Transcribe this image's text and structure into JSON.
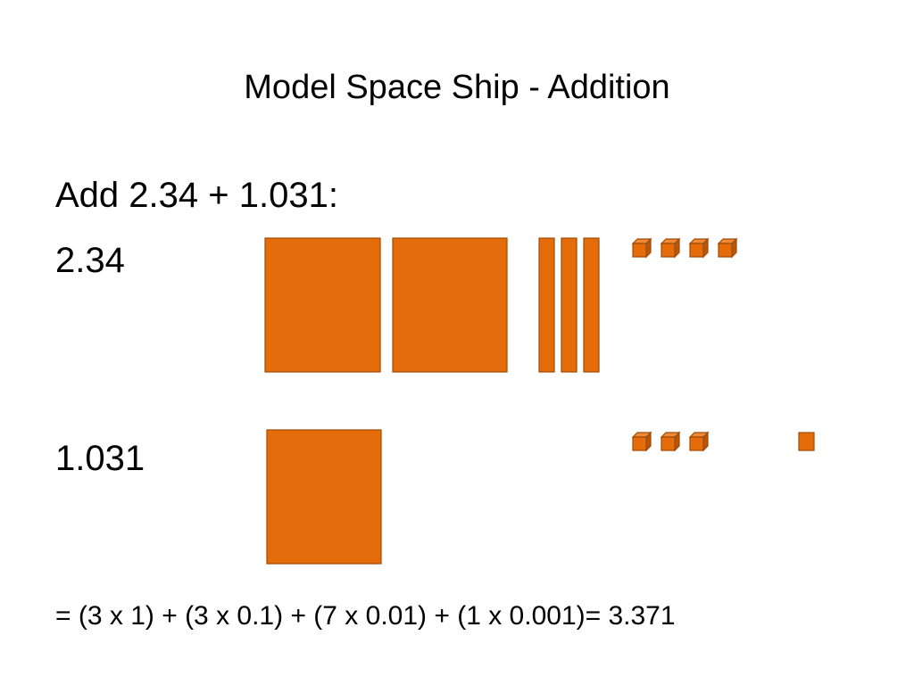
{
  "header": {
    "title": "Model Space Ship - Addition"
  },
  "body": {
    "prompt": "Add 2.34 + 1.031:",
    "first": "2.34",
    "second": "1.031",
    "result": "= (3 x 1) + (3 x 0.1) + (7 x 0.01) + (1 x 0.001)= 3.371"
  }
}
